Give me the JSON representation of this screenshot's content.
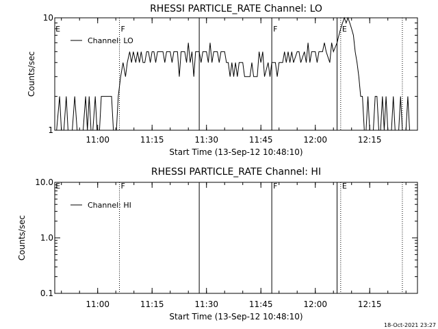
{
  "footer": "18-Oct-2021 23:27",
  "colors": {
    "background": "#ffffff",
    "foreground": "#000000"
  },
  "chart_data": [
    {
      "type": "line",
      "title": "RHESSI PARTICLE_RATE Channel: LO",
      "xlabel": "Start Time (13-Sep-12 10:48:10)",
      "ylabel": "Counts/sec",
      "yscale": "log",
      "ylim": [
        1,
        10
      ],
      "xlim": [
        "10:48:10",
        "12:28:10"
      ],
      "x_ticks": [
        "11:00",
        "11:15",
        "11:30",
        "11:45",
        "12:00",
        "12:15"
      ],
      "y_ticks": [
        "1",
        "10"
      ],
      "legend": {
        "entries": [
          "Channel: LO"
        ],
        "placement": "top-left"
      },
      "vertical_markers": [
        {
          "time": "11:06",
          "style": "dotted"
        },
        {
          "time": "11:28",
          "style": "solid"
        },
        {
          "time": "11:48",
          "style": "solid"
        },
        {
          "time": "12:06",
          "style": "solid"
        },
        {
          "time": "12:07",
          "style": "dotted"
        },
        {
          "time": "12:24",
          "style": "dotted"
        }
      ],
      "flags": [
        {
          "label": "E",
          "time": "10:48"
        },
        {
          "label": "F",
          "time": "11:06"
        },
        {
          "label": "F",
          "time": "11:48"
        },
        {
          "label": "E",
          "time": "12:07"
        }
      ],
      "series": [
        {
          "name": "Channel: LO",
          "points": [
            [
              "10:48:40",
              1
            ],
            [
              "10:49:30",
              2
            ],
            [
              "10:50:00",
              1
            ],
            [
              "10:50:40",
              1
            ],
            [
              "10:51:20",
              2
            ],
            [
              "10:51:50",
              1
            ],
            [
              "10:53:00",
              1
            ],
            [
              "10:53:40",
              2
            ],
            [
              "10:54:20",
              1
            ],
            [
              "10:56:00",
              1
            ],
            [
              "10:56:40",
              2
            ],
            [
              "10:57:10",
              1
            ],
            [
              "10:57:40",
              2
            ],
            [
              "10:58:10",
              1
            ],
            [
              "10:58:40",
              1
            ],
            [
              "10:59:20",
              2
            ],
            [
              "10:59:50",
              1
            ],
            [
              "11:00:30",
              1
            ],
            [
              "11:01:00",
              2
            ],
            [
              "11:03:50",
              2
            ],
            [
              "11:04:20",
              1
            ],
            [
              "11:05:10",
              1
            ],
            [
              "11:05:40",
              2
            ],
            [
              "11:06:20",
              3
            ],
            [
              "11:07:00",
              4
            ],
            [
              "11:07:40",
              3
            ],
            [
              "11:08:10",
              4
            ],
            [
              "11:08:50",
              5
            ],
            [
              "11:09:20",
              4
            ],
            [
              "11:09:50",
              5
            ],
            [
              "11:10:30",
              4
            ],
            [
              "11:11:00",
              5
            ],
            [
              "11:11:30",
              4
            ],
            [
              "11:12:00",
              5
            ],
            [
              "11:12:30",
              4
            ],
            [
              "11:13:00",
              4
            ],
            [
              "11:13:30",
              5
            ],
            [
              "11:14:00",
              5
            ],
            [
              "11:14:30",
              4
            ],
            [
              "11:15:00",
              5
            ],
            [
              "11:15:30",
              5
            ],
            [
              "11:16:00",
              4
            ],
            [
              "11:16:30",
              5
            ],
            [
              "11:17:00",
              5
            ],
            [
              "11:18:00",
              5
            ],
            [
              "11:18:30",
              4
            ],
            [
              "11:19:00",
              5
            ],
            [
              "11:20:00",
              5
            ],
            [
              "11:20:30",
              4
            ],
            [
              "11:21:00",
              5
            ],
            [
              "11:22:00",
              5
            ],
            [
              "11:22:30",
              3
            ],
            [
              "11:23:00",
              5
            ],
            [
              "11:24:00",
              5
            ],
            [
              "11:24:30",
              4
            ],
            [
              "11:25:00",
              6
            ],
            [
              "11:25:30",
              4
            ],
            [
              "11:26:00",
              5
            ],
            [
              "11:26:30",
              3
            ],
            [
              "11:27:00",
              5
            ],
            [
              "11:28:00",
              5
            ],
            [
              "11:28:30",
              4
            ],
            [
              "11:29:00",
              5
            ],
            [
              "11:30:00",
              5
            ],
            [
              "11:30:30",
              4
            ],
            [
              "11:31:00",
              6
            ],
            [
              "11:31:30",
              4
            ],
            [
              "11:32:00",
              5
            ],
            [
              "11:33:00",
              5
            ],
            [
              "11:33:30",
              4
            ],
            [
              "11:34:00",
              5
            ],
            [
              "11:35:00",
              5
            ],
            [
              "11:35:30",
              4
            ],
            [
              "11:36:00",
              4
            ],
            [
              "11:36:30",
              3
            ],
            [
              "11:37:00",
              4
            ],
            [
              "11:37:30",
              3
            ],
            [
              "11:38:00",
              4
            ],
            [
              "11:38:30",
              3
            ],
            [
              "11:39:00",
              4
            ],
            [
              "11:40:00",
              4
            ],
            [
              "11:40:30",
              3
            ],
            [
              "11:41:00",
              3
            ],
            [
              "11:42:00",
              3
            ],
            [
              "11:42:30",
              4
            ],
            [
              "11:43:00",
              3
            ],
            [
              "11:44:00",
              3
            ],
            [
              "11:44:30",
              5
            ],
            [
              "11:45:00",
              4
            ],
            [
              "11:45:30",
              5
            ],
            [
              "11:46:00",
              3
            ],
            [
              "11:47:00",
              4
            ],
            [
              "11:47:30",
              3
            ],
            [
              "11:48:00",
              4
            ],
            [
              "11:49:00",
              4
            ],
            [
              "11:49:30",
              3
            ],
            [
              "11:50:00",
              4
            ],
            [
              "11:51:00",
              4
            ],
            [
              "11:51:30",
              5
            ],
            [
              "11:52:00",
              4
            ],
            [
              "11:52:30",
              5
            ],
            [
              "11:53:00",
              4
            ],
            [
              "11:53:30",
              5
            ],
            [
              "11:54:00",
              4
            ],
            [
              "11:55:00",
              5
            ],
            [
              "11:55:30",
              5
            ],
            [
              "11:56:00",
              4
            ],
            [
              "11:57:00",
              5
            ],
            [
              "11:57:30",
              4
            ],
            [
              "11:58:00",
              6
            ],
            [
              "11:58:30",
              4
            ],
            [
              "11:59:00",
              5
            ],
            [
              "12:00:00",
              5
            ],
            [
              "12:00:30",
              4
            ],
            [
              "12:01:00",
              5
            ],
            [
              "12:02:00",
              5
            ],
            [
              "12:02:30",
              6
            ],
            [
              "12:03:00",
              5
            ],
            [
              "12:04:00",
              4
            ],
            [
              "12:04:30",
              6
            ],
            [
              "12:05:00",
              5
            ],
            [
              "12:06:00",
              6
            ],
            [
              "12:06:30",
              7
            ],
            [
              "12:07:00",
              8
            ],
            [
              "12:07:30",
              9
            ],
            [
              "12:08:00",
              10
            ],
            [
              "12:08:30",
              9
            ],
            [
              "12:09:00",
              10
            ],
            [
              "12:09:30",
              9
            ],
            [
              "12:10:00",
              8
            ],
            [
              "12:10:30",
              7
            ],
            [
              "12:11:00",
              5
            ],
            [
              "12:11:30",
              4
            ],
            [
              "12:12:00",
              3
            ],
            [
              "12:12:30",
              2
            ],
            [
              "12:13:00",
              2
            ],
            [
              "12:13:30",
              1
            ],
            [
              "12:14:00",
              1
            ],
            [
              "12:14:30",
              2
            ],
            [
              "12:15:00",
              1
            ],
            [
              "12:16:00",
              1
            ],
            [
              "12:16:30",
              2
            ],
            [
              "12:17:00",
              2
            ],
            [
              "12:17:30",
              1
            ],
            [
              "12:18:00",
              1
            ],
            [
              "12:18:30",
              2
            ],
            [
              "12:19:00",
              1
            ],
            [
              "12:19:30",
              2
            ],
            [
              "12:20:00",
              1
            ],
            [
              "12:21:00",
              1
            ],
            [
              "12:21:30",
              2
            ],
            [
              "12:22:00",
              1
            ],
            [
              "12:23:00",
              1
            ],
            [
              "12:23:30",
              2
            ],
            [
              "12:24:00",
              1
            ],
            [
              "12:25:00",
              1
            ],
            [
              "12:25:30",
              2
            ],
            [
              "12:26:00",
              1
            ]
          ]
        }
      ]
    },
    {
      "type": "line",
      "title": "RHESSI PARTICLE_RATE Channel: HI",
      "xlabel": "Start Time (13-Sep-12 10:48:10)",
      "ylabel": "Counts/sec",
      "yscale": "log",
      "ylim": [
        0.1,
        10
      ],
      "xlim": [
        "10:48:10",
        "12:28:10"
      ],
      "x_ticks": [
        "11:00",
        "11:15",
        "11:30",
        "11:45",
        "12:00",
        "12:15"
      ],
      "y_ticks": [
        "0.1",
        "1.0",
        "10.0"
      ],
      "legend": {
        "entries": [
          "Channel: HI"
        ],
        "placement": "top-left"
      },
      "vertical_markers": [
        {
          "time": "11:06",
          "style": "dotted"
        },
        {
          "time": "11:28",
          "style": "solid"
        },
        {
          "time": "11:48",
          "style": "solid"
        },
        {
          "time": "12:06",
          "style": "solid"
        },
        {
          "time": "12:07",
          "style": "dotted"
        },
        {
          "time": "12:24",
          "style": "dotted"
        }
      ],
      "flags": [
        {
          "label": "E",
          "time": "10:48"
        },
        {
          "label": "F",
          "time": "11:06"
        },
        {
          "label": "F",
          "time": "11:48"
        },
        {
          "label": "E",
          "time": "12:07"
        }
      ],
      "series": [
        {
          "name": "Channel: HI",
          "points": []
        }
      ]
    }
  ]
}
